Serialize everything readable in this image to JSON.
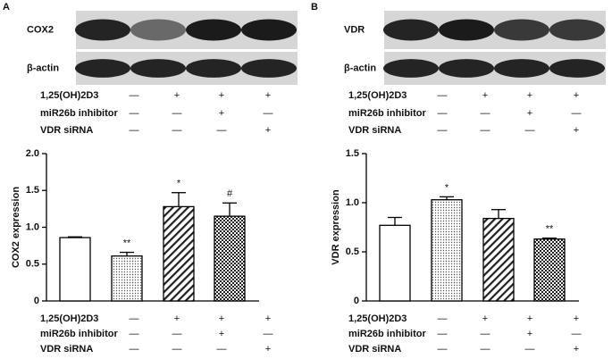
{
  "chart_data": [
    {
      "type": "bar",
      "panel": "A",
      "blot_labels": [
        "COX2",
        "β-actin"
      ],
      "treatments": [
        {
          "name": "1,25(OH)2D3",
          "signs": [
            "—",
            "+",
            "+",
            "+"
          ]
        },
        {
          "name": "miR26b inhibitor",
          "signs": [
            "—",
            "—",
            "+",
            "—"
          ]
        },
        {
          "name": "VDR siRNA",
          "signs": [
            "—",
            "—",
            "—",
            "+"
          ]
        }
      ],
      "ylabel": "COX2 expression",
      "values": [
        0.86,
        0.61,
        1.28,
        1.15
      ],
      "errors": [
        0.01,
        0.05,
        0.19,
        0.18
      ],
      "annotations": [
        "",
        "**",
        "*",
        "#"
      ],
      "ylim": [
        0,
        2.0
      ],
      "yticks": [
        0,
        0.5,
        {
          "value": 1.0,
          "label": "1.0"
        },
        1.5,
        {
          "value": 2.0,
          "label": "2.0"
        }
      ]
    },
    {
      "type": "bar",
      "panel": "B",
      "blot_labels": [
        "VDR",
        "β-actin"
      ],
      "treatments": [
        {
          "name": "1,25(OH)2D3",
          "signs": [
            "—",
            "+",
            "+",
            "+"
          ]
        },
        {
          "name": "miR26b inhibitor",
          "signs": [
            "—",
            "—",
            "+",
            "—"
          ]
        },
        {
          "name": "VDR siRNA",
          "signs": [
            "—",
            "—",
            "—",
            "+"
          ]
        }
      ],
      "ylabel": "VDR expression",
      "values": [
        0.77,
        1.03,
        0.84,
        0.63
      ],
      "errors": [
        0.08,
        0.03,
        0.09,
        0.01
      ],
      "annotations": [
        "",
        "*",
        "",
        "**"
      ],
      "ylim": [
        0,
        1.5
      ],
      "yticks": [
        0,
        0.5,
        {
          "value": 1.0,
          "label": "1.0"
        },
        1.5
      ]
    }
  ]
}
